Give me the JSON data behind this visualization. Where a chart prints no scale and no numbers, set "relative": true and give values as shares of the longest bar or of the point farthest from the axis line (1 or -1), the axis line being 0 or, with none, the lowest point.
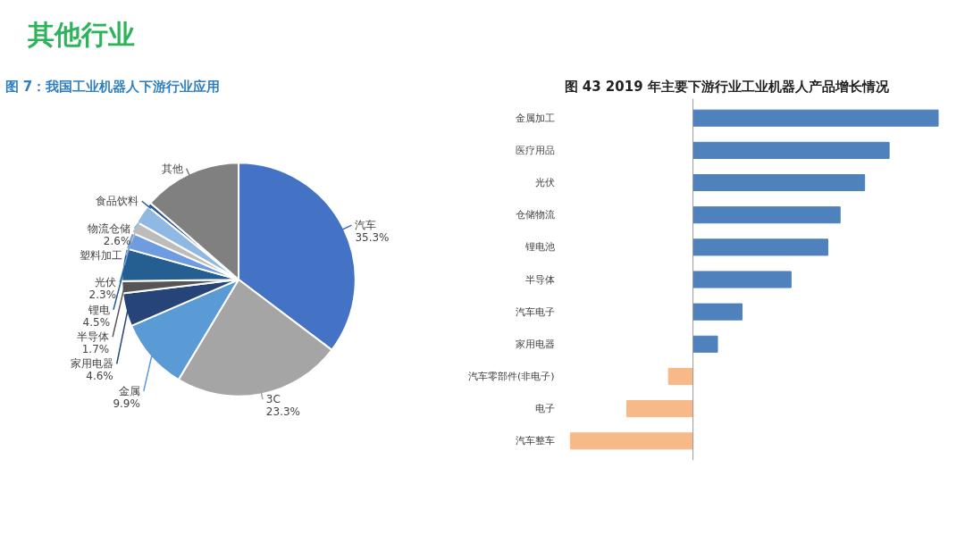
{
  "chart_data": [
    {
      "type": "other",
      "title": "其他行业"
    },
    {
      "type": "pie",
      "title": "图 7：我国工业机器人下游行业应用",
      "categories": [
        "汽车",
        "3C",
        "金属",
        "家用电器",
        "半导体",
        "锂电",
        "光伏",
        "塑料加工",
        "物流仓储",
        "食品饮料",
        "其他"
      ],
      "values": [
        35.3,
        23.3,
        9.9,
        4.6,
        1.7,
        4.5,
        2.3,
        1.6,
        2.6,
        0.6,
        13.6
      ],
      "value_labels": [
        "35.3%",
        "23.3%",
        "9.9%",
        "4.6%",
        "1.7%",
        "4.5%",
        "2.3%",
        null,
        "2.6%",
        null,
        null
      ],
      "colors": [
        "#4472c4",
        "#a5a5a5",
        "#5b9bd5",
        "#264478",
        "#555555",
        "#255e91",
        "#6f9ce0",
        "#bcbcbc",
        "#8fb9e3",
        "#2e5596",
        "#808080"
      ]
    },
    {
      "type": "bar",
      "orientation": "horizontal",
      "relative": true,
      "title": "图 43   2019 年主要下游行业工业机器人产品增长情况",
      "categories": [
        "金属加工",
        "医疗用品",
        "光伏",
        "仓储物流",
        "锂电池",
        "半导体",
        "汽车电子",
        "家用电器",
        "汽车零部件(非电子)",
        "电子",
        "汽车整车"
      ],
      "values": [
        1,
        0.8,
        0.7,
        0.6,
        0.55,
        0.4,
        0.2,
        0.1,
        -0.1,
        -0.27,
        -0.5
      ],
      "colors": [
        "#4f81bd",
        "#4f81bd",
        "#4f81bd",
        "#4f81bd",
        "#4f81bd",
        "#4f81bd",
        "#4f81bd",
        "#4f81bd",
        "#f7b987",
        "#f7b987",
        "#f7b987"
      ]
    }
  ]
}
